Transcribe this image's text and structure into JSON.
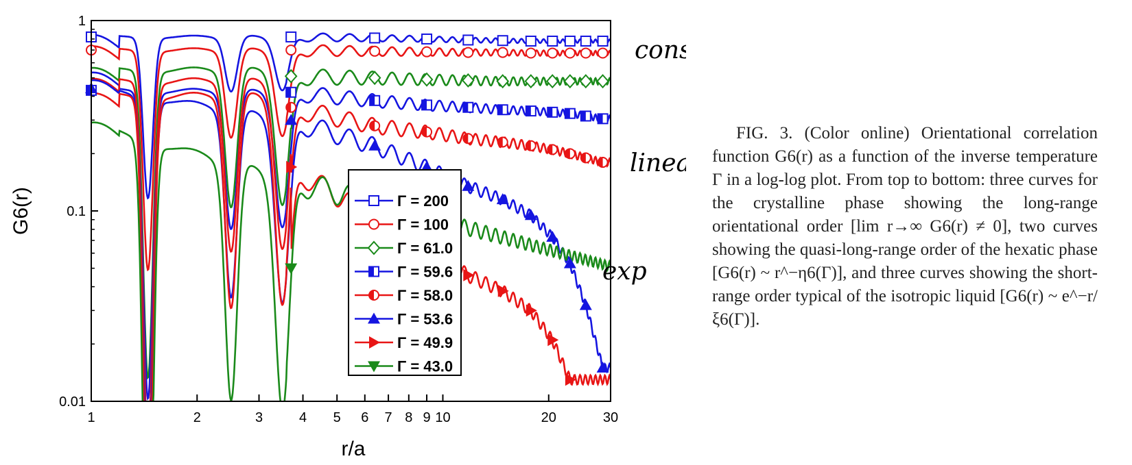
{
  "chart_data": {
    "type": "line",
    "xscale": "log",
    "yscale": "log",
    "xlim": [
      1,
      30
    ],
    "ylim": [
      0.01,
      1
    ],
    "xlabel": "r/a",
    "ylabel": "G6(r)",
    "xticks": [
      1,
      2,
      3,
      4,
      5,
      6,
      7,
      8,
      9,
      10,
      20,
      30
    ],
    "xtick_labels": [
      "1",
      "2",
      "3",
      "4",
      "5",
      "6",
      "7",
      "8",
      "9",
      "10",
      "20",
      "30"
    ],
    "yticks": [
      0.01,
      0.1,
      1
    ],
    "ytick_labels": [
      "0.01",
      "0.1",
      "1"
    ],
    "legend_position": "center",
    "grid": false,
    "series": [
      {
        "name": "Γ = 200",
        "color": "#1515e0",
        "marker": "square-open",
        "x": [
          1,
          3.7,
          6.4,
          9,
          11.8,
          14.8,
          17.8,
          20.5,
          23,
          25.5,
          28.5
        ],
        "y": [
          0.82,
          0.82,
          0.81,
          0.8,
          0.79,
          0.785,
          0.78,
          0.78,
          0.78,
          0.78,
          0.78
        ],
        "plateau": 0.83
      },
      {
        "name": "Γ = 100",
        "color": "#e81515",
        "marker": "circle-open",
        "x": [
          1,
          3.7,
          6.4,
          9,
          11.8,
          14.8,
          17.8,
          20.5,
          23,
          25.5,
          28.5
        ],
        "y": [
          0.7,
          0.7,
          0.69,
          0.685,
          0.68,
          0.68,
          0.675,
          0.675,
          0.675,
          0.675,
          0.675
        ],
        "plateau": 0.72
      },
      {
        "name": "Γ = 61.0",
        "color": "#1a8a1a",
        "marker": "diamond-open",
        "x": [
          3.7,
          6.4,
          9,
          11.8,
          14.8,
          17.8,
          20.5,
          23,
          25.5,
          28.5
        ],
        "y": [
          0.51,
          0.5,
          0.49,
          0.485,
          0.48,
          0.48,
          0.48,
          0.48,
          0.48,
          0.48
        ],
        "plateau": 0.55
      },
      {
        "name": "Γ = 59.6",
        "color": "#1515e0",
        "marker": "square-half",
        "x": [
          1,
          3.7,
          6.4,
          9,
          11.8,
          14.8,
          17.8,
          20.5,
          23,
          25.5,
          28.5
        ],
        "y": [
          0.43,
          0.42,
          0.38,
          0.36,
          0.35,
          0.34,
          0.335,
          0.33,
          0.325,
          0.315,
          0.305
        ],
        "plateau": 0.52
      },
      {
        "name": "Γ = 58.0",
        "color": "#e81515",
        "marker": "circle-half",
        "x": [
          3.7,
          6.4,
          9,
          11.8,
          14.8,
          17.8,
          20.5,
          23,
          25.5,
          28.5
        ],
        "y": [
          0.35,
          0.28,
          0.26,
          0.24,
          0.23,
          0.22,
          0.21,
          0.2,
          0.19,
          0.18
        ],
        "plateau": 0.48
      },
      {
        "name": "Γ = 53.6",
        "color": "#1515e0",
        "marker": "triangle-up",
        "x": [
          1,
          3.7,
          6.4,
          9,
          11.8,
          14.8,
          17.8,
          20.5,
          23,
          25.5,
          28.5
        ],
        "y": [
          0.44,
          0.3,
          0.22,
          0.17,
          0.135,
          0.115,
          0.095,
          0.073,
          0.053,
          0.032,
          0.015
        ],
        "plateau": 0.47
      },
      {
        "name": "Γ = 49.9",
        "color": "#e81515",
        "marker": "triangle-right",
        "x": [
          3.7,
          11.8,
          14.8,
          17.8,
          20.5,
          23
        ],
        "y": [
          0.17,
          0.046,
          0.038,
          0.03,
          0.021,
          0.013
        ],
        "plateau": 0.4
      },
      {
        "name": "Γ = 43.0",
        "color": "#1a8a1a",
        "marker": "triangle-down",
        "x": [
          3.7
        ],
        "y": [
          0.05
        ],
        "plateau": 0.28
      }
    ]
  },
  "annotations": {
    "constant": "constant",
    "linear": "linear",
    "exp": "exp"
  },
  "caption": {
    "text": "FIG. 3. (Color online) Orientational correlation function G6(r) as a function of the inverse temperature Γ in a log-log plot. From top to bottom: three curves for the crystalline phase showing the long-range orientational order [lim r→∞ G6(r) ≠ 0], two curves showing the quasi-long-range order of the hexatic phase [G6(r) ~ r^−η6(Γ)], and three curves showing the short-range order typical of the isotropic liquid [G6(r) ~ e^−r/ξ6(Γ)]."
  }
}
